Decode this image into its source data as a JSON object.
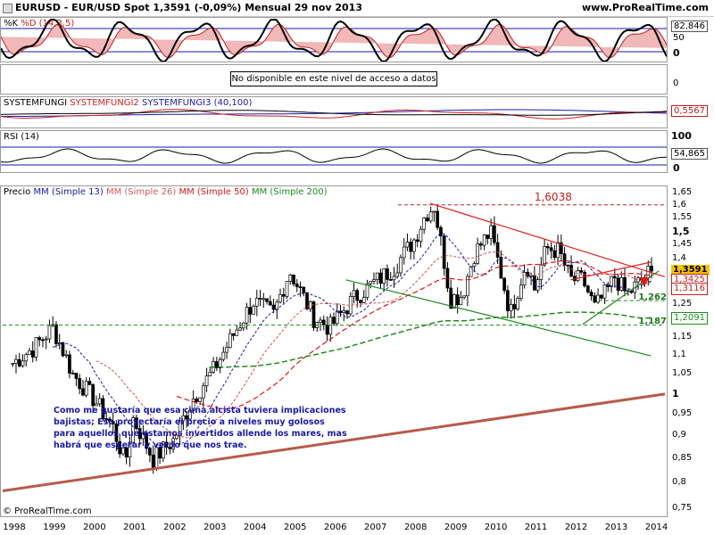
{
  "header": {
    "title": "EURUSD - EUR/USD Spot     1,3591 (-0,09%)     Mensual  29 nov 2013",
    "site": "www.ProRealTime.com"
  },
  "stoch": {
    "title_k": "%K",
    "title_d": "%D (14,3,5)",
    "axis_top": "82,846",
    "axis_mid": "50",
    "axis_zero": "0"
  },
  "na_panel": {
    "message": "No disponible en este nivel de acceso a datos",
    "axis": "0"
  },
  "systemfungi": {
    "name1": "SYSTEMFUNGI",
    "name2": "SYSTEMFUNGI2",
    "name3": "SYSTEMFUNGI3 (40,100)",
    "axis_a": "0,5567",
    "axis_b": "0"
  },
  "rsi": {
    "title": "RSI (14)",
    "axis_top": "100",
    "axis_val": "54,865",
    "axis_zero": "0"
  },
  "price": {
    "legend_prefix": "Precio",
    "legend_mm13": "MM (Simple 13)",
    "legend_mm26": "MM (Simple 26)",
    "legend_mm50": "MM (Simple 50)",
    "legend_mm200": "MM (Simple 200)",
    "high_label": "1,6038",
    "level_1": "1,2625",
    "level_2": "1,1877",
    "last_price": "1,3591",
    "mm13_val": "1,3425",
    "mm26_val": "1,3116",
    "mm200_val": "1,2091",
    "note": "Como me gustaría que esa cuña alcista tuviera implicaciones bajistas; Eso proyectaría el precio a niveles muy golosos para aquellos que estamos invertidos allende los mares, mas habrá que esperar y ver lo que nos trae.",
    "copyright": "© ProRealTime.com"
  },
  "colors": {
    "mm13": "#1a1aa8",
    "mm26": "#d23a3a",
    "mm50": "#e01818",
    "mm200": "#1e8c1e",
    "wedge_red": "#e02020",
    "wedge_green": "#1e8c1e",
    "long_trend": "#b85a4a",
    "price_tag": "#f5c400"
  },
  "chart_data": {
    "type": "line",
    "title": "EURUSD - EUR/USD Spot",
    "period": "Mensual",
    "ylim": [
      0.75,
      1.65
    ],
    "yscale": "log",
    "y_ticks": [
      "1,65",
      "1,6",
      "1,55",
      "1,5",
      "1,45",
      "1,4",
      "1,35",
      "1,3",
      "1,25",
      "1,2",
      "1,15",
      "1,1",
      "1,05",
      "1",
      "0,95",
      "0,9",
      "0,85",
      "0,8",
      "0,75"
    ],
    "x_ticks": [
      "1998",
      "1999",
      "2000",
      "2001",
      "2002",
      "2003",
      "2004",
      "2005",
      "2006",
      "2007",
      "2008",
      "2009",
      "2010",
      "2011",
      "2012",
      "2013",
      "2014"
    ],
    "series": [
      {
        "name": "EURUSD",
        "x": [
          1998.0,
          1998.5,
          1999.0,
          1999.5,
          2000.0,
          2000.5,
          2000.8,
          2001.0,
          2001.5,
          2002.0,
          2002.5,
          2003.0,
          2003.5,
          2004.0,
          2004.5,
          2004.9,
          2005.5,
          2005.9,
          2006.5,
          2007.0,
          2007.5,
          2008.0,
          2008.3,
          2008.5,
          2008.9,
          2009.2,
          2009.5,
          2009.9,
          2010.4,
          2010.8,
          2011.0,
          2011.3,
          2011.6,
          2011.9,
          2012.2,
          2012.5,
          2012.8,
          2013.0,
          2013.3,
          2013.6,
          2013.9
        ],
        "y": [
          1.08,
          1.12,
          1.18,
          1.05,
          0.99,
          0.92,
          0.84,
          0.94,
          0.85,
          0.89,
          0.99,
          1.06,
          1.16,
          1.26,
          1.22,
          1.36,
          1.21,
          1.18,
          1.27,
          1.32,
          1.37,
          1.47,
          1.57,
          1.6,
          1.27,
          1.28,
          1.42,
          1.5,
          1.22,
          1.39,
          1.3,
          1.44,
          1.43,
          1.33,
          1.33,
          1.24,
          1.29,
          1.34,
          1.28,
          1.32,
          1.3591
        ]
      },
      {
        "name": "MM (Simple 13)",
        "values_end": 1.3425
      },
      {
        "name": "MM (Simple 26)",
        "values_end": 1.3116
      },
      {
        "name": "MM (Simple 200)",
        "values_end": 1.2091
      }
    ],
    "levels": [
      1.6038,
      1.2625,
      1.1877
    ]
  }
}
